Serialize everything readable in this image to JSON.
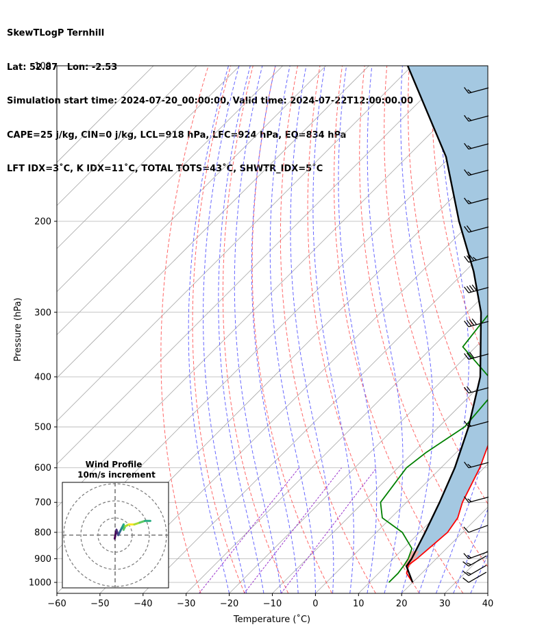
{
  "header": {
    "line1": "SkewTLogP Ternhill",
    "line2": "Lat: 52.87   Lon: -2.53",
    "line3": "Simulation start time: 2024-07-20_00:00:00, Valid time: 2024-07-22T12:00:00.00",
    "line4": "CAPE=25 j/kg, CIN=0 j/kg, LCL=918 hPa, LFC=924 hPa, EQ=834 hPa",
    "line5": "LFT IDX=3˚C, K IDX=11˚C, TOTAL TOTS=43˚C, SHWTR_IDX=5˚C"
  },
  "chart_data": {
    "type": "line",
    "xlabel": "Temperature (˚C)",
    "ylabel": "Pressure (hPa)",
    "xlim": [
      -60,
      40
    ],
    "ylim": [
      1050,
      100
    ],
    "y_scale": "log",
    "x_ticks": [
      "−60",
      "−50",
      "−40",
      "−30",
      "−20",
      "−10",
      "0",
      "10",
      "20",
      "30",
      "40"
    ],
    "x_tick_values": [
      -60,
      -50,
      -40,
      -30,
      -20,
      -10,
      0,
      10,
      20,
      30,
      40
    ],
    "y_ticks": [
      "100",
      "200",
      "300",
      "400",
      "500",
      "600",
      "700",
      "800",
      "900",
      "1000"
    ],
    "y_tick_values": [
      100,
      200,
      300,
      400,
      500,
      600,
      700,
      800,
      900,
      1000
    ],
    "grid": true,
    "series": [
      {
        "color": "#ff0000",
        "points": [
          [
            1000,
            20
          ],
          [
            960,
            16.5
          ],
          [
            925,
            15
          ],
          [
            900,
            15.5
          ],
          [
            850,
            16
          ],
          [
            800,
            16.5
          ],
          [
            750,
            15.5
          ],
          [
            700,
            13
          ],
          [
            600,
            9
          ],
          [
            500,
            3
          ],
          [
            400,
            -4
          ],
          [
            350,
            -9
          ],
          [
            300,
            -15
          ],
          [
            260,
            -21
          ],
          [
            230,
            -29
          ],
          [
            210,
            -36
          ],
          [
            190,
            -42
          ],
          [
            160,
            -49
          ],
          [
            130,
            -56
          ],
          [
            110,
            -62
          ],
          [
            100,
            -66
          ]
        ]
      },
      {
        "color": "#008000",
        "points": [
          [
            1000,
            14.5
          ],
          [
            960,
            14.5
          ],
          [
            925,
            14
          ],
          [
            900,
            13.5
          ],
          [
            860,
            12
          ],
          [
            800,
            6
          ],
          [
            750,
            -2
          ],
          [
            700,
            -6
          ],
          [
            600,
            -8
          ],
          [
            560,
            -7
          ],
          [
            500,
            -4
          ],
          [
            440,
            -5
          ],
          [
            400,
            -10
          ],
          [
            350,
            -23
          ],
          [
            320,
            -24
          ],
          [
            290,
            -25
          ],
          [
            250,
            -30
          ],
          [
            210,
            -37
          ],
          [
            190,
            -42
          ],
          [
            170,
            -48
          ],
          [
            160,
            -57
          ],
          [
            130,
            -60
          ],
          [
            100,
            -63
          ]
        ]
      },
      {
        "color": "#000000",
        "points": [
          [
            1000,
            20
          ],
          [
            930,
            14.8
          ],
          [
            900,
            14.3
          ],
          [
            800,
            11.3
          ],
          [
            700,
            7.7
          ],
          [
            600,
            3.2
          ],
          [
            500,
            -3.1
          ],
          [
            400,
            -12
          ],
          [
            300,
            -26.8
          ],
          [
            250,
            -38
          ],
          [
            200,
            -53
          ],
          [
            150,
            -71
          ],
          [
            100,
            -101
          ]
        ]
      }
    ],
    "background_lines": {
      "isotherms_color": "#a6a6a6",
      "dry_adiabats_color": "#ff6666",
      "moist_adiabats_color": "#6666ff",
      "mixing_ratio_color": "#9933cc"
    },
    "cape_fill_color": "#a4c8e1",
    "cin_fill_color": "#f4a9a0",
    "wind_barbs_note": "wind barbs plotted at right edge",
    "wind_barbs": [
      {
        "p": 1000,
        "speed_kt": 10,
        "dir": 300
      },
      {
        "p": 970,
        "speed_kt": 15,
        "dir": 300
      },
      {
        "p": 930,
        "speed_kt": 15,
        "dir": 300
      },
      {
        "p": 900,
        "speed_kt": 15,
        "dir": 290
      },
      {
        "p": 800,
        "speed_kt": 10,
        "dir": 290
      },
      {
        "p": 700,
        "speed_kt": 15,
        "dir": 285
      },
      {
        "p": 600,
        "speed_kt": 15,
        "dir": 285
      },
      {
        "p": 500,
        "speed_kt": 15,
        "dir": 285
      },
      {
        "p": 430,
        "speed_kt": 20,
        "dir": 285
      },
      {
        "p": 370,
        "speed_kt": 30,
        "dir": 285
      },
      {
        "p": 320,
        "speed_kt": 40,
        "dir": 285
      },
      {
        "p": 275,
        "speed_kt": 40,
        "dir": 285
      },
      {
        "p": 240,
        "speed_kt": 35,
        "dir": 285
      },
      {
        "p": 210,
        "speed_kt": 20,
        "dir": 285
      },
      {
        "p": 185,
        "speed_kt": 15,
        "dir": 285
      },
      {
        "p": 163,
        "speed_kt": 15,
        "dir": 285
      },
      {
        "p": 145,
        "speed_kt": 15,
        "dir": 285
      },
      {
        "p": 128,
        "speed_kt": 15,
        "dir": 285
      },
      {
        "p": 113,
        "speed_kt": 15,
        "dir": 285
      }
    ],
    "inset": {
      "title": "Wind Profile",
      "subtitle": "10m/s increment",
      "hodograph_points": [
        [
          -6,
          -2
        ],
        [
          -5,
          3
        ],
        [
          -4,
          0
        ],
        [
          -3,
          2
        ],
        [
          -2,
          4
        ],
        [
          -1,
          6
        ],
        [
          -1,
          3
        ],
        [
          0,
          5
        ],
        [
          2,
          6
        ],
        [
          5,
          6
        ],
        [
          8,
          7
        ],
        [
          11,
          8
        ],
        [
          14,
          8
        ]
      ]
    }
  }
}
